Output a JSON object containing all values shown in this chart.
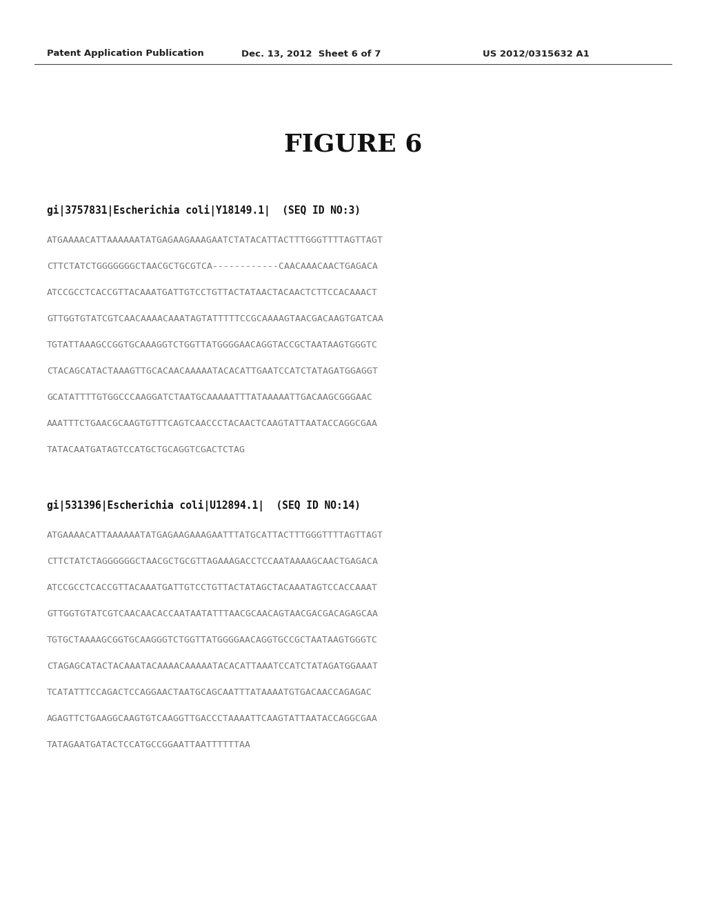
{
  "background_color": "#ffffff",
  "header_left": "Patent Application Publication",
  "header_mid": "Dec. 13, 2012  Sheet 6 of 7",
  "header_right": "US 2012/0315632 A1",
  "figure_title": "FIGURE 6",
  "section1_header": "gi|3757831|Escherichia coli|Y18149.1|  (SEQ ID NO:3)",
  "section1_lines": [
    "ATGAAAACATTAAAAAATATGAGAAGAAAGAATCTATACATTACTTTGGGTTTTAGTTAGT",
    "CTTCTATCTGGGGGGGCTAACGCTGCGTCA------------CAACAAACAACTGAGACA",
    "ATCCGCCTCACCGTTACAAATGATTGTCCTGTTACTATAACTACAACTCTTCCACAAACT",
    "GTTGGTGTATCGTCAACAAAACAAATAGTATTTTTCCGCAAAAGTAACGACAAGTGATCAA",
    "TGTATTAAAGCCGGTGCAAAGGTCTGGTTATGGGGAACAGGTACCGCTAATAAGTGGGTC",
    "CTACAGCATACTAAAGTTGCACAACAAAAATACACATTGAATCCATCTATAGATGGAGGT",
    "GCATATTTTGTGGCCCAAGGATCTAATGCAAAAATTTATAAAAATTGACAAGCGGGAAC",
    "AAATTTCTGAACGCAAGTGTTTCAGTCAACCCTACAACTCAAGTATTAATACCAGGCGAA",
    "TATACAATGATAGTCCATGCTGCAGGTCGACTCTAG"
  ],
  "section2_header": "gi|531396|Escherichia coli|U12894.1|  (SEQ ID NO:14)",
  "section2_lines": [
    "ATGAAAACATTAAAAAATATGAGAAGAAAGAATTTATGCATTACTTTGGGTTTTAGTTAGT",
    "CTTCTATCTAGGGGGGCTAACGCTGCGTTAGAAAGACCTCCAATAAAAGCAACTGAGACA",
    "ATCCGCCTCACCGTTACAAATGATTGTCCTGTTACTATAGCTACAAATAGTCCACCAAAT",
    "GTTGGTGTATCGTCAACAACACCAATAATATTTAACGCAACAGTAACGACGACAGAGCAA",
    "TGTGCTAAAAGCGGTGCAAGGGTCTGGTTATGGGGAACAGGTGCCGCTAATAAGTGGGTC",
    "CTAGAGCATACTACAAATACAAAACAAAAATACACATTAAATCCATCTATAGATGGAAAT",
    "TCATATTTCCAGACTCCAGGAACTAATGCAGCAATTTATAAAATGTGACAACCAGAGAC",
    "AGAGTTCTGAAGGCAAGTGTCAAGGTTGACCCTAAAATTCAAGTATTAATACCAGGCGAA",
    "TATAGAATGATACTCCATGCCGGAATTAATTTTTTAA"
  ],
  "seq_text_color": "#777777",
  "header_text_color": "#222222",
  "section_header_color": "#111111",
  "title_color": "#111111"
}
